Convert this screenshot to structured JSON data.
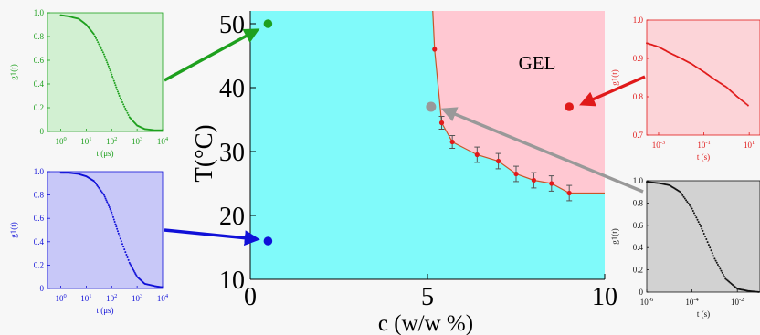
{
  "colors": {
    "sol": "#80fafa",
    "gel": "#ffc8d2",
    "boundary": "#c8552a",
    "red": "#e01a1a",
    "green": "#1ea01e",
    "blue": "#1010d8",
    "gray": "#999999",
    "inset_green_bg": "#d2f0d2",
    "inset_blue_bg": "#c8c8f8",
    "inset_red_bg": "#fcd4d8",
    "inset_gray_bg": "#d2d2d2"
  },
  "chart_data": [
    {
      "type": "scatter",
      "role": "main",
      "xlabel": "c (w/w %)",
      "ylabel": "T(°C)",
      "xlim": [
        0,
        10
      ],
      "ylim": [
        10,
        52
      ],
      "xticks": [
        "0",
        "5",
        "10"
      ],
      "yticks": [
        "10",
        "20",
        "30",
        "40",
        "50"
      ],
      "region_label": "GEL",
      "phase_boundary": {
        "x": [
          5.2,
          5.4,
          5.7,
          6.4,
          7.0,
          7.5,
          8.0,
          8.5,
          9.0,
          10.0
        ],
        "y": [
          46.0,
          34.5,
          31.5,
          29.5,
          28.5,
          26.5,
          25.5,
          25.0,
          23.5,
          23.5
        ],
        "error": [
          0,
          1.0,
          1.0,
          1.2,
          1.2,
          1.2,
          1.2,
          1.2,
          1.2,
          0
        ]
      },
      "markers": [
        {
          "name": "green",
          "x": 0.5,
          "y": 50
        },
        {
          "name": "blue",
          "x": 0.5,
          "y": 16
        },
        {
          "name": "red",
          "x": 9.0,
          "y": 37
        },
        {
          "name": "gray",
          "x": 5.1,
          "y": 37
        }
      ]
    },
    {
      "type": "scatter",
      "role": "inset-green",
      "xlabel": "t (μs)",
      "ylabel": "g1(t)",
      "xscale": "log",
      "xlim": [
        0.3,
        10000
      ],
      "ylim": [
        0,
        1
      ],
      "xticks": [
        "10^0",
        "10^1",
        "10^2",
        "10^3",
        "10^4"
      ],
      "yticks": [
        "0",
        "0.2",
        "0.4",
        "0.6",
        "0.8",
        "1.0"
      ],
      "x": [
        1,
        2,
        5,
        10,
        20,
        50,
        100,
        200,
        500,
        1000,
        2000,
        5000,
        10000
      ],
      "y": [
        0.98,
        0.97,
        0.95,
        0.9,
        0.82,
        0.65,
        0.48,
        0.3,
        0.12,
        0.05,
        0.02,
        0.01,
        0.01
      ]
    },
    {
      "type": "scatter",
      "role": "inset-blue",
      "xlabel": "t (μs)",
      "ylabel": "g1(t)",
      "xscale": "log",
      "xlim": [
        0.3,
        10000
      ],
      "ylim": [
        0,
        1
      ],
      "xticks": [
        "10^0",
        "10^1",
        "10^2",
        "10^3",
        "10^4"
      ],
      "yticks": [
        "0",
        "0.2",
        "0.4",
        "0.6",
        "0.8",
        "1.0"
      ],
      "x": [
        1,
        2,
        5,
        10,
        20,
        50,
        100,
        200,
        500,
        1000,
        2000,
        5000,
        10000
      ],
      "y": [
        0.99,
        0.99,
        0.98,
        0.96,
        0.92,
        0.8,
        0.65,
        0.45,
        0.22,
        0.1,
        0.04,
        0.02,
        0.01
      ]
    },
    {
      "type": "scatter",
      "role": "inset-red",
      "xlabel": "t (s)",
      "ylabel": "g1(t)",
      "xscale": "log",
      "xlim": [
        0.0003,
        30
      ],
      "ylim": [
        0.7,
        1.0
      ],
      "xticks": [
        "10^-3",
        "10^-1",
        "10^1"
      ],
      "yticks": [
        "0.7",
        "0.8",
        "0.9",
        "1.0"
      ],
      "x": [
        0.0003,
        0.001,
        0.003,
        0.01,
        0.03,
        0.1,
        0.3,
        1,
        3,
        10
      ],
      "y": [
        0.94,
        0.93,
        0.915,
        0.9,
        0.885,
        0.865,
        0.845,
        0.825,
        0.8,
        0.775
      ]
    },
    {
      "type": "scatter",
      "role": "inset-gray",
      "xlabel": "t (s)",
      "ylabel": "g1(t)",
      "xscale": "log",
      "xlim": [
        1e-06,
        0.1
      ],
      "ylim": [
        0,
        1
      ],
      "xticks": [
        "10^-6",
        "10^-4",
        "10^-2"
      ],
      "yticks": [
        "0",
        "0.2",
        "0.4",
        "0.6",
        "0.8",
        "1.0"
      ],
      "x": [
        1e-06,
        3e-06,
        1e-05,
        3e-05,
        0.0001,
        0.0003,
        0.001,
        0.003,
        0.01,
        0.03,
        0.1
      ],
      "y": [
        0.99,
        0.98,
        0.96,
        0.9,
        0.75,
        0.55,
        0.3,
        0.12,
        0.03,
        0.01,
        0.0
      ]
    }
  ]
}
